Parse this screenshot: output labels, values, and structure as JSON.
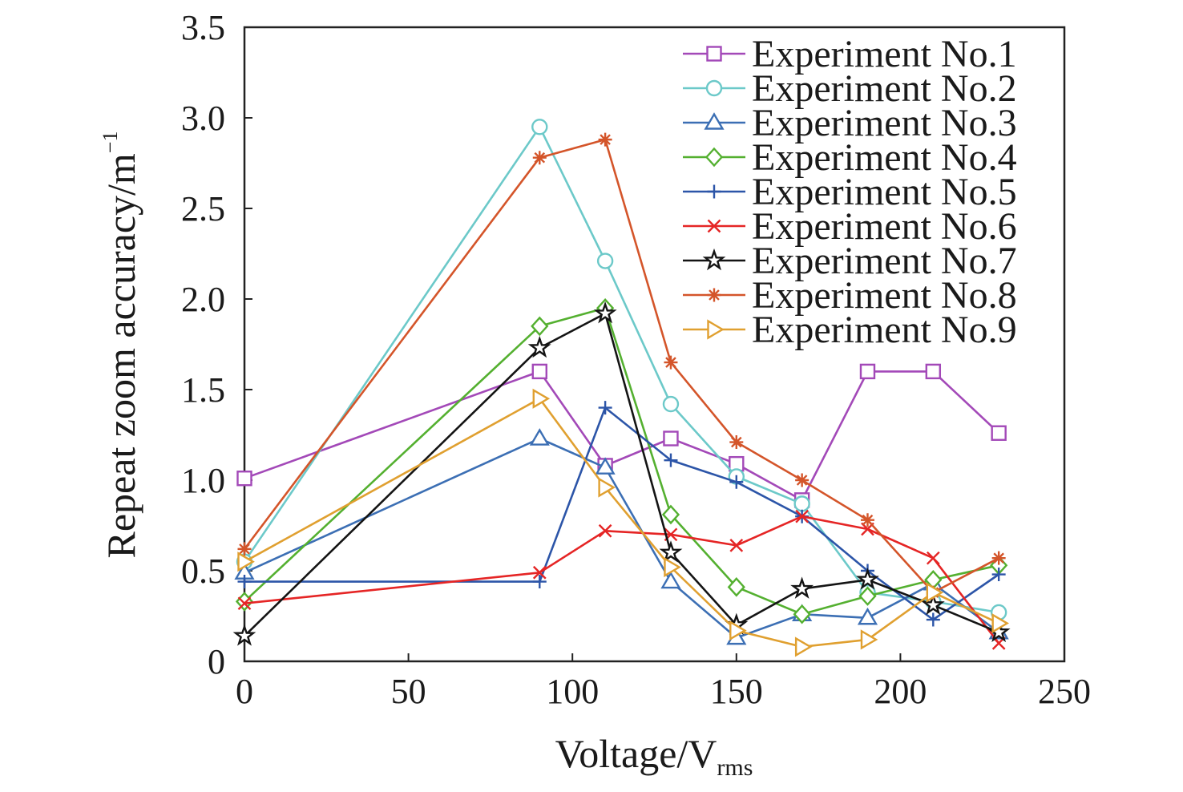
{
  "chart_data": {
    "type": "line",
    "xlabel": {
      "main": "Voltage/V",
      "sub": "rms"
    },
    "ylabel": {
      "main": "Repeat zoom accuracy/m",
      "sup": "−1"
    },
    "xlim": [
      0,
      250
    ],
    "ylim": [
      0,
      3.5
    ],
    "x_ticks": [
      "0",
      "50",
      "100",
      "150",
      "200",
      "250"
    ],
    "y_ticks": [
      "0",
      "0.5",
      "1.0",
      "1.5",
      "2.0",
      "2.5",
      "3.0",
      "3.5"
    ],
    "grid": false,
    "legend_position": "top-right",
    "x": [
      0,
      90,
      110,
      130,
      150,
      170,
      190,
      210,
      230
    ],
    "series": [
      {
        "name": "Experiment No.1",
        "color": "#a349b8",
        "marker": "square",
        "values": [
          1.01,
          1.6,
          1.08,
          1.23,
          1.09,
          0.89,
          1.6,
          1.6,
          1.26
        ]
      },
      {
        "name": "Experiment No.2",
        "color": "#6cc9c9",
        "marker": "circle",
        "values": [
          0.55,
          2.95,
          2.21,
          1.42,
          1.02,
          0.87,
          0.38,
          0.33,
          0.27
        ]
      },
      {
        "name": "Experiment No.3",
        "color": "#3c6fb4",
        "marker": "triangle-up",
        "values": [
          0.49,
          1.23,
          1.07,
          0.44,
          0.13,
          0.26,
          0.24,
          0.43,
          0.16
        ]
      },
      {
        "name": "Experiment No.4",
        "color": "#54b030",
        "marker": "diamond",
        "values": [
          0.33,
          1.85,
          1.95,
          0.81,
          0.41,
          0.26,
          0.36,
          0.45,
          0.53
        ]
      },
      {
        "name": "Experiment No.5",
        "color": "#2c55a8",
        "marker": "plus",
        "values": [
          0.44,
          0.44,
          1.4,
          1.11,
          0.99,
          0.8,
          0.5,
          0.23,
          0.48
        ]
      },
      {
        "name": "Experiment No.6",
        "color": "#e52525",
        "marker": "x",
        "values": [
          0.32,
          0.49,
          0.72,
          0.7,
          0.64,
          0.8,
          0.73,
          0.57,
          0.1
        ]
      },
      {
        "name": "Experiment No.7",
        "color": "#141414",
        "marker": "star",
        "values": [
          0.14,
          1.73,
          1.92,
          0.6,
          0.2,
          0.4,
          0.45,
          0.31,
          0.16
        ]
      },
      {
        "name": "Experiment No.8",
        "color": "#d4552a",
        "marker": "asterisk",
        "values": [
          0.62,
          2.78,
          2.88,
          1.65,
          1.21,
          1.0,
          0.78,
          0.38,
          0.57
        ]
      },
      {
        "name": "Experiment No.9",
        "color": "#e0a030",
        "marker": "triangle-right",
        "values": [
          0.55,
          1.45,
          0.96,
          0.52,
          0.17,
          0.08,
          0.12,
          0.38,
          0.21
        ]
      }
    ]
  }
}
